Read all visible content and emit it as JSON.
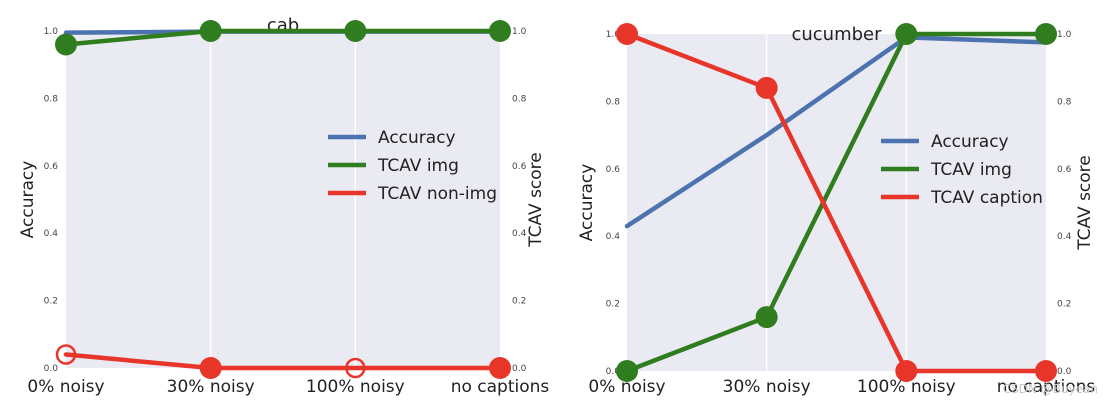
{
  "chart_data": [
    {
      "type": "line",
      "title": "cab",
      "categories": [
        "0% noisy",
        "30% noisy",
        "100% noisy",
        "no captions"
      ],
      "ylabel_left": "Accuracy",
      "ylabel_right": "TCAV score",
      "ylim_left": [
        0.0,
        1.0
      ],
      "ylim_right": [
        0.0,
        1.0
      ],
      "yticks_left": [
        "0.0",
        "0.2",
        "0.4",
        "0.6",
        "0.8",
        "1.0"
      ],
      "yticks_right": [
        "0.0",
        "0.2",
        "0.4",
        "0.6",
        "0.8",
        "1.0"
      ],
      "grid": true,
      "legend_location": "center-right",
      "series": [
        {
          "name": "Accuracy",
          "axis": "left",
          "color": "#4c72b0",
          "values": [
            0.995,
            0.998,
            0.998,
            0.998
          ],
          "markers": []
        },
        {
          "name": "TCAV img",
          "axis": "right",
          "color": "#2f7d1e",
          "values": [
            0.96,
            1.0,
            1.0,
            1.0
          ],
          "markers": [
            "filled",
            "filled",
            "filled",
            "filled"
          ]
        },
        {
          "name": "TCAV non-img",
          "axis": "right",
          "color": "#e8352a",
          "values": [
            0.04,
            0.0,
            0.0,
            0.0
          ],
          "markers": [
            "hollow",
            "filled",
            "hollow",
            "filled"
          ]
        }
      ]
    },
    {
      "type": "line",
      "title": "cucumber",
      "categories": [
        "0% noisy",
        "30% noisy",
        "100% noisy",
        "no captions"
      ],
      "ylabel_left": "Accuracy",
      "ylabel_right": "TCAV score",
      "ylim_left": [
        0.0,
        1.0
      ],
      "ylim_right": [
        0.0,
        1.0
      ],
      "yticks_left": [
        "0.0",
        "0.2",
        "0.4",
        "0.6",
        "0.8",
        "1.0"
      ],
      "yticks_right": [
        "0.0",
        "0.2",
        "0.4",
        "0.6",
        "0.8",
        "1.0"
      ],
      "grid": true,
      "legend_location": "center-right",
      "series": [
        {
          "name": "Accuracy",
          "axis": "left",
          "color": "#4c72b0",
          "values": [
            0.43,
            0.7,
            0.99,
            0.975
          ],
          "markers": []
        },
        {
          "name": "TCAV img",
          "axis": "right",
          "color": "#2f7d1e",
          "values": [
            0.0,
            0.16,
            1.0,
            1.0
          ],
          "markers": [
            "filled",
            "filled",
            "filled",
            "filled"
          ]
        },
        {
          "name": "TCAV caption",
          "axis": "right",
          "color": "#e8352a",
          "values": [
            1.0,
            0.84,
            0.0,
            0.0
          ],
          "markers": [
            "filled",
            "filled",
            "filled",
            "filled"
          ]
        }
      ]
    }
  ],
  "watermark": "CSDN @Buyean"
}
